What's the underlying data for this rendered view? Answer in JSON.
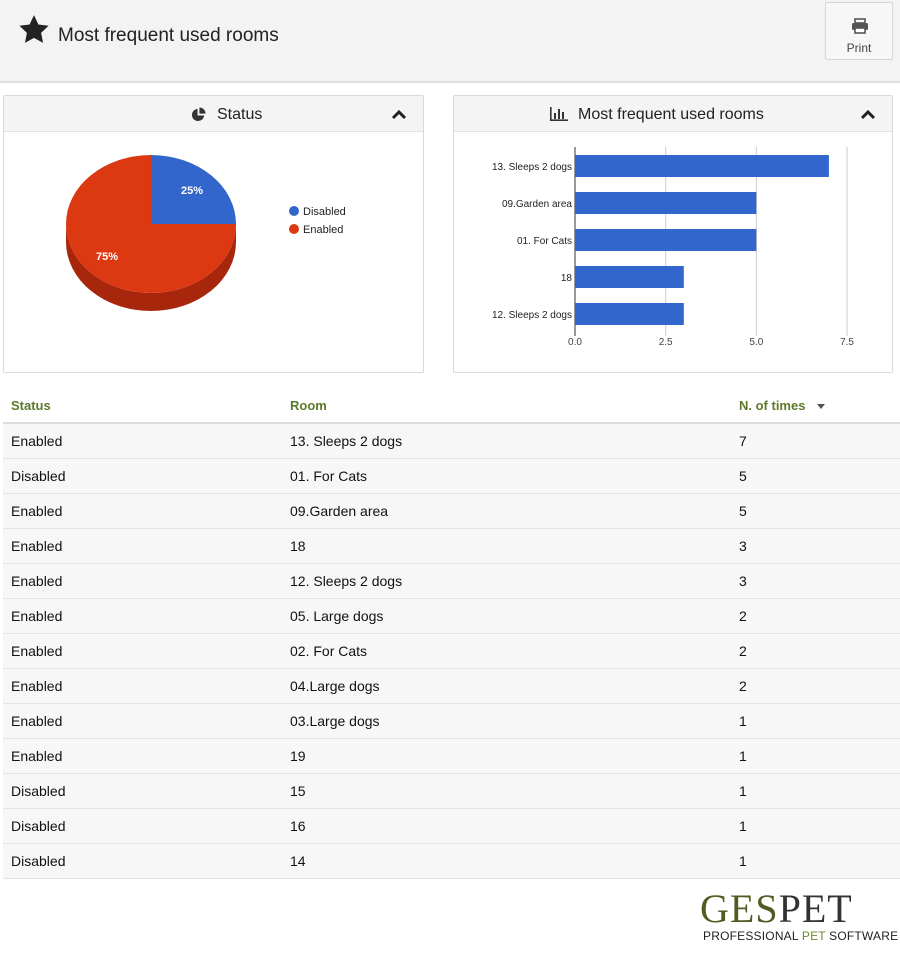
{
  "header": {
    "title": "Most frequent used rooms",
    "print_label": "Print"
  },
  "status_panel": {
    "title": "Status",
    "legend": [
      {
        "label": "Disabled",
        "color": "#3366cc"
      },
      {
        "label": "Enabled",
        "color": "#dc3912"
      }
    ]
  },
  "rooms_panel": {
    "title": "Most frequent used rooms"
  },
  "chart_data": [
    {
      "type": "pie",
      "title": "",
      "slices": [
        {
          "label": "Disabled",
          "value": 25,
          "display": "25%",
          "color": "#3366cc"
        },
        {
          "label": "Enabled",
          "value": 75,
          "display": "75%",
          "color": "#dc3912"
        }
      ],
      "legend_position": "right",
      "three_d": true
    },
    {
      "type": "bar",
      "orientation": "horizontal",
      "title": "",
      "categories": [
        "13. Sleeps 2 dogs",
        "09.Garden area",
        "01. For Cats",
        "18",
        "12. Sleeps 2 dogs"
      ],
      "values": [
        7,
        5,
        5,
        3,
        3
      ],
      "xlim": [
        0,
        7.5
      ],
      "xticks": [
        "0.0",
        "2.5",
        "5.0",
        "7.5"
      ],
      "bar_color": "#3366cc",
      "grid": true
    }
  ],
  "table": {
    "columns": [
      "Status",
      "Room",
      "N. of times"
    ],
    "rows": [
      [
        "Enabled",
        "13. Sleeps 2 dogs",
        "7"
      ],
      [
        "Disabled",
        "01. For Cats",
        "5"
      ],
      [
        "Enabled",
        "09.Garden area",
        "5"
      ],
      [
        "Enabled",
        "18",
        "3"
      ],
      [
        "Enabled",
        "12. Sleeps 2 dogs",
        "3"
      ],
      [
        "Enabled",
        "05. Large dogs",
        "2"
      ],
      [
        "Enabled",
        "02. For Cats",
        "2"
      ],
      [
        "Enabled",
        "04.Large dogs",
        "2"
      ],
      [
        "Enabled",
        "03.Large dogs",
        "1"
      ],
      [
        "Enabled",
        "19",
        "1"
      ],
      [
        "Disabled",
        "15",
        "1"
      ],
      [
        "Disabled",
        "16",
        "1"
      ],
      [
        "Disabled",
        "14",
        "1"
      ]
    ]
  },
  "logo": {
    "brand_part1": "GES",
    "brand_part2": "PET",
    "tagline_part1": "PROFESSIONAL ",
    "tagline_part2": "PET",
    "tagline_part3": " SOFTWARE"
  }
}
